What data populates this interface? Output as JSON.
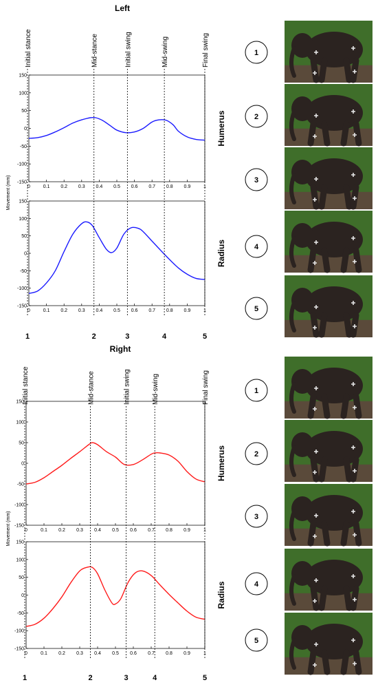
{
  "chart_data": [
    {
      "type": "line",
      "panel": "left-humerus",
      "title": "Left",
      "ylabel": "Movement (mm)",
      "side_label": "Humerus",
      "color": "#1a1aff",
      "xlim": [
        0,
        1
      ],
      "ylim": [
        -150,
        150
      ],
      "xticks": [
        "0",
        "0.1",
        "0.2",
        "0.3",
        "0.4",
        "0.5",
        "0.6",
        "0.7",
        "0.8",
        "0.9",
        "1"
      ],
      "yticks": [
        "150",
        "100",
        "50",
        "0",
        "-50",
        "-100",
        "-150"
      ],
      "x": [
        0,
        0.05,
        0.1,
        0.15,
        0.2,
        0.25,
        0.3,
        0.35,
        0.38,
        0.42,
        0.47,
        0.5,
        0.55,
        0.6,
        0.65,
        0.7,
        0.74,
        0.78,
        0.82,
        0.85,
        0.9,
        0.95,
        1
      ],
      "y": [
        -28,
        -26,
        -20,
        -10,
        2,
        15,
        24,
        30,
        30,
        22,
        5,
        -5,
        -12,
        -10,
        0,
        18,
        24,
        23,
        10,
        -8,
        -24,
        -31,
        -33
      ]
    },
    {
      "type": "line",
      "panel": "left-radius",
      "title": "",
      "ylabel": "",
      "side_label": "Radius",
      "color": "#1a1aff",
      "xlim": [
        0,
        1
      ],
      "ylim": [
        -150,
        150
      ],
      "xticks": [
        "0",
        "0.1",
        "0.2",
        "0.3",
        "0.4",
        "0.5",
        "0.6",
        "0.7",
        "0.8",
        "0.9",
        "1"
      ],
      "yticks": [
        "150",
        "100",
        "50",
        "0",
        "-50",
        "-100",
        "-150"
      ],
      "x": [
        0,
        0.05,
        0.1,
        0.15,
        0.2,
        0.25,
        0.3,
        0.33,
        0.36,
        0.4,
        0.44,
        0.47,
        0.5,
        0.54,
        0.58,
        0.62,
        0.65,
        0.7,
        0.75,
        0.8,
        0.85,
        0.9,
        0.95,
        1
      ],
      "y": [
        -115,
        -108,
        -85,
        -50,
        5,
        55,
        85,
        90,
        80,
        45,
        12,
        2,
        15,
        55,
        73,
        72,
        62,
        35,
        8,
        -18,
        -42,
        -60,
        -72,
        -75
      ]
    },
    {
      "type": "line",
      "panel": "right-humerus",
      "title": "Right",
      "ylabel": "Movement (mm)",
      "side_label": "Humerus",
      "color": "#ff1a1a",
      "xlim": [
        0,
        1
      ],
      "ylim": [
        -150,
        150
      ],
      "xticks": [
        "0",
        "0.1",
        "0.2",
        "0.3",
        "0.4",
        "0.5",
        "0.6",
        "0.7",
        "0.8",
        "0.9",
        "1"
      ],
      "yticks": [
        "150",
        "100",
        "50",
        "0",
        "-50",
        "-100",
        "-150"
      ],
      "x": [
        0,
        0.05,
        0.1,
        0.15,
        0.2,
        0.25,
        0.3,
        0.35,
        0.37,
        0.4,
        0.45,
        0.5,
        0.55,
        0.6,
        0.65,
        0.7,
        0.72,
        0.75,
        0.8,
        0.85,
        0.9,
        0.95,
        1
      ],
      "y": [
        -50,
        -46,
        -35,
        -20,
        -5,
        12,
        28,
        45,
        50,
        45,
        28,
        15,
        -3,
        -3,
        8,
        22,
        25,
        25,
        20,
        5,
        -20,
        -38,
        -45
      ]
    },
    {
      "type": "line",
      "panel": "right-radius",
      "title": "",
      "ylabel": "",
      "side_label": "Radius",
      "color": "#ff1a1a",
      "xlim": [
        0,
        1
      ],
      "ylim": [
        -150,
        150
      ],
      "xticks": [
        "0",
        "0.1",
        "0.2",
        "0.3",
        "0.4",
        "0.5",
        "0.6",
        "0.7",
        "0.8",
        "0.9",
        "1"
      ],
      "yticks": [
        "150",
        "100",
        "50",
        "0",
        "-50",
        "-100",
        "-150"
      ],
      "x": [
        0,
        0.05,
        0.1,
        0.15,
        0.2,
        0.25,
        0.3,
        0.34,
        0.37,
        0.4,
        0.44,
        0.48,
        0.5,
        0.53,
        0.57,
        0.61,
        0.65,
        0.7,
        0.75,
        0.8,
        0.85,
        0.9,
        0.95,
        1
      ],
      "y": [
        -88,
        -82,
        -65,
        -38,
        -5,
        35,
        68,
        78,
        78,
        60,
        15,
        -22,
        -25,
        -10,
        35,
        62,
        68,
        55,
        28,
        2,
        -22,
        -45,
        -62,
        -68
      ]
    }
  ],
  "phases": {
    "left": [
      {
        "label": "Initial stance",
        "x": 0
      },
      {
        "label": "Mid-stance",
        "x": 0.37
      },
      {
        "label": "Initial swing",
        "x": 0.56
      },
      {
        "label": "Mid-swing",
        "x": 0.77
      },
      {
        "label": "Final swing",
        "x": 1
      }
    ],
    "right": [
      {
        "label": "Initial stance",
        "x": 0
      },
      {
        "label": "Mid-stance",
        "x": 0.36
      },
      {
        "label": "Initial swing",
        "x": 0.56
      },
      {
        "label": "Mid-swing",
        "x": 0.72
      },
      {
        "label": "Final swing",
        "x": 1
      }
    ]
  },
  "phase_numbers": [
    "1",
    "2",
    "3",
    "4",
    "5"
  ],
  "circle_labels": [
    "1",
    "2",
    "3",
    "4",
    "5"
  ],
  "photo_theme": {
    "ground": "#5a4a3a",
    "foliage": "#3f6e2a",
    "body": "#2b2320",
    "marker": "#e8e8e8"
  }
}
